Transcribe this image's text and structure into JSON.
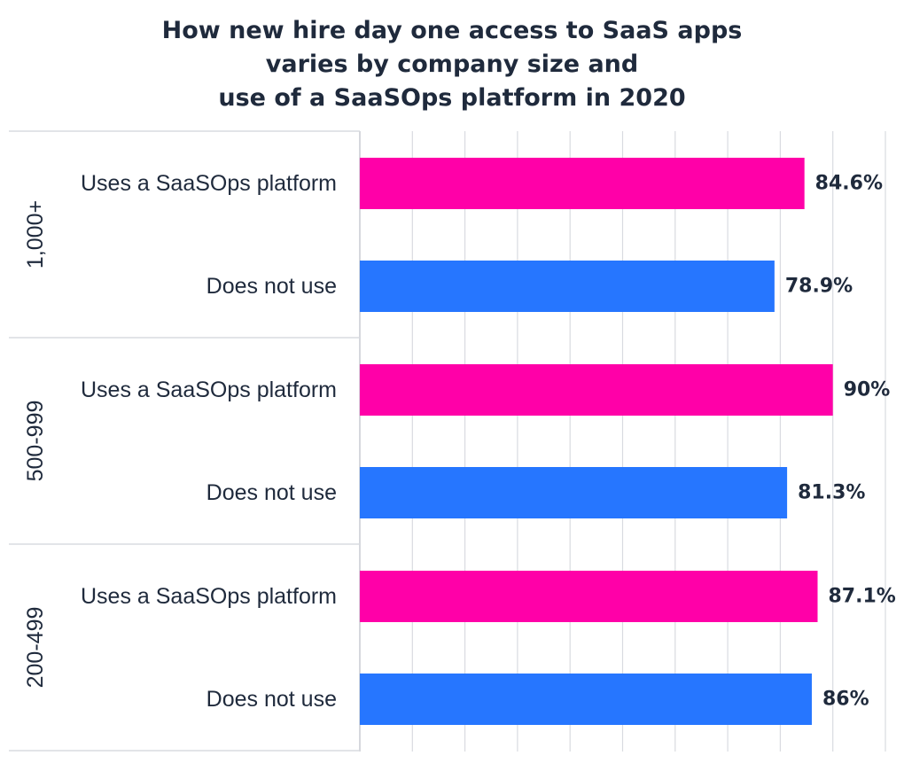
{
  "chart_data": {
    "type": "bar",
    "orientation": "horizontal",
    "title_lines": [
      "How new hire day one access to SaaS apps",
      "varies by company size and",
      "use of a SaaSOps platform in 2020"
    ],
    "xlim": [
      0,
      100
    ],
    "grid": true,
    "groups": [
      {
        "name": "1,000+",
        "bars": [
          {
            "label": "Uses a SaaSOps platform",
            "value": 84.6,
            "value_label": "84.6%",
            "color": "#ff00a8"
          },
          {
            "label": "Does not use",
            "value": 78.9,
            "value_label": "78.9%",
            "color": "#2676ff"
          }
        ]
      },
      {
        "name": "500-999",
        "bars": [
          {
            "label": "Uses a SaaSOps platform",
            "value": 90,
            "value_label": "90%",
            "color": "#ff00a8"
          },
          {
            "label": "Does not use",
            "value": 81.3,
            "value_label": "81.3%",
            "color": "#2676ff"
          }
        ]
      },
      {
        "name": "200-499",
        "bars": [
          {
            "label": "Uses a SaaSOps platform",
            "value": 87.1,
            "value_label": "87.1%",
            "color": "#ff00a8"
          },
          {
            "label": "Does not use",
            "value": 86,
            "value_label": "86%",
            "color": "#2676ff"
          }
        ]
      }
    ]
  }
}
